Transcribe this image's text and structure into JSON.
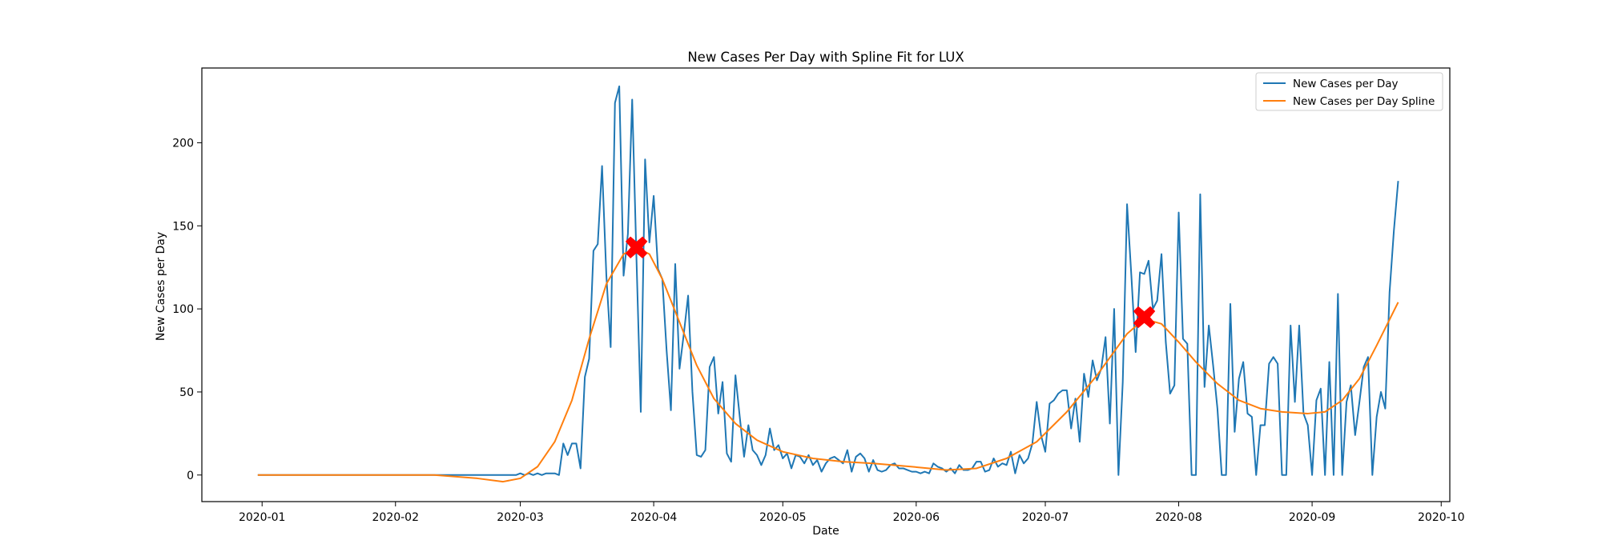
{
  "chart_data": {
    "type": "line",
    "title": "New Cases Per Day with Spline Fit for LUX",
    "xlabel": "Date",
    "ylabel": "New Cases per Day",
    "x_start_date": "2019-12-31",
    "xlim_dates": [
      "2019-12-18",
      "2020-10-03"
    ],
    "ylim": [
      -16,
      245
    ],
    "x_ticks": [
      {
        "date": "2020-01-01",
        "label": "2020-01"
      },
      {
        "date": "2020-02-01",
        "label": "2020-02"
      },
      {
        "date": "2020-03-01",
        "label": "2020-03"
      },
      {
        "date": "2020-04-01",
        "label": "2020-04"
      },
      {
        "date": "2020-05-01",
        "label": "2020-05"
      },
      {
        "date": "2020-06-01",
        "label": "2020-06"
      },
      {
        "date": "2020-07-01",
        "label": "2020-07"
      },
      {
        "date": "2020-08-01",
        "label": "2020-08"
      },
      {
        "date": "2020-09-01",
        "label": "2020-09"
      },
      {
        "date": "2020-10-01",
        "label": "2020-10"
      }
    ],
    "y_ticks": [
      0,
      50,
      100,
      150,
      200
    ],
    "grid": false,
    "legend": "top-right",
    "series": [
      {
        "name": "New Cases per Day",
        "color": "#1f77b4",
        "points": [
          [
            "2019-12-31",
            0
          ],
          [
            "2020-01-10",
            0
          ],
          [
            "2020-01-20",
            0
          ],
          [
            "2020-01-31",
            0
          ],
          [
            "2020-02-10",
            0
          ],
          [
            "2020-02-20",
            0
          ],
          [
            "2020-02-29",
            0
          ],
          [
            "2020-03-01",
            1
          ],
          [
            "2020-03-02",
            0
          ],
          [
            "2020-03-03",
            1
          ],
          [
            "2020-03-04",
            0
          ],
          [
            "2020-03-05",
            1
          ],
          [
            "2020-03-06",
            0
          ],
          [
            "2020-03-07",
            1
          ],
          [
            "2020-03-08",
            1
          ],
          [
            "2020-03-09",
            1
          ],
          [
            "2020-03-10",
            0
          ],
          [
            "2020-03-11",
            19
          ],
          [
            "2020-03-12",
            12
          ],
          [
            "2020-03-13",
            19
          ],
          [
            "2020-03-14",
            19
          ],
          [
            "2020-03-15",
            4
          ],
          [
            "2020-03-16",
            59
          ],
          [
            "2020-03-17",
            70
          ],
          [
            "2020-03-18",
            135
          ],
          [
            "2020-03-19",
            139
          ],
          [
            "2020-03-20",
            186
          ],
          [
            "2020-03-21",
            120
          ],
          [
            "2020-03-22",
            77
          ],
          [
            "2020-03-23",
            224
          ],
          [
            "2020-03-24",
            234
          ],
          [
            "2020-03-25",
            120
          ],
          [
            "2020-03-26",
            145
          ],
          [
            "2020-03-27",
            226
          ],
          [
            "2020-03-28",
            130
          ],
          [
            "2020-03-29",
            38
          ],
          [
            "2020-03-30",
            190
          ],
          [
            "2020-03-31",
            140
          ],
          [
            "2020-04-01",
            168
          ],
          [
            "2020-04-02",
            124
          ],
          [
            "2020-04-03",
            118
          ],
          [
            "2020-04-04",
            75
          ],
          [
            "2020-04-05",
            39
          ],
          [
            "2020-04-06",
            127
          ],
          [
            "2020-04-07",
            64
          ],
          [
            "2020-04-08",
            85
          ],
          [
            "2020-04-09",
            108
          ],
          [
            "2020-04-10",
            50
          ],
          [
            "2020-04-11",
            12
          ],
          [
            "2020-04-12",
            11
          ],
          [
            "2020-04-13",
            15
          ],
          [
            "2020-04-14",
            65
          ],
          [
            "2020-04-15",
            71
          ],
          [
            "2020-04-16",
            37
          ],
          [
            "2020-04-17",
            56
          ],
          [
            "2020-04-18",
            13
          ],
          [
            "2020-04-19",
            8
          ],
          [
            "2020-04-20",
            60
          ],
          [
            "2020-04-21",
            35
          ],
          [
            "2020-04-22",
            11
          ],
          [
            "2020-04-23",
            30
          ],
          [
            "2020-04-24",
            15
          ],
          [
            "2020-04-25",
            12
          ],
          [
            "2020-04-26",
            6
          ],
          [
            "2020-04-27",
            12
          ],
          [
            "2020-04-28",
            28
          ],
          [
            "2020-04-29",
            15
          ],
          [
            "2020-04-30",
            18
          ],
          [
            "2020-05-01",
            10
          ],
          [
            "2020-05-02",
            13
          ],
          [
            "2020-05-03",
            4
          ],
          [
            "2020-05-04",
            12
          ],
          [
            "2020-05-05",
            11
          ],
          [
            "2020-05-06",
            7
          ],
          [
            "2020-05-07",
            12
          ],
          [
            "2020-05-08",
            6
          ],
          [
            "2020-05-09",
            9
          ],
          [
            "2020-05-10",
            2
          ],
          [
            "2020-05-11",
            7
          ],
          [
            "2020-05-12",
            10
          ],
          [
            "2020-05-13",
            11
          ],
          [
            "2020-05-14",
            9
          ],
          [
            "2020-05-15",
            7
          ],
          [
            "2020-05-16",
            15
          ],
          [
            "2020-05-17",
            2
          ],
          [
            "2020-05-18",
            11
          ],
          [
            "2020-05-19",
            13
          ],
          [
            "2020-05-20",
            10
          ],
          [
            "2020-05-21",
            2
          ],
          [
            "2020-05-22",
            9
          ],
          [
            "2020-05-23",
            3
          ],
          [
            "2020-05-24",
            2
          ],
          [
            "2020-05-25",
            3
          ],
          [
            "2020-05-26",
            6
          ],
          [
            "2020-05-27",
            7
          ],
          [
            "2020-05-28",
            4
          ],
          [
            "2020-05-29",
            4
          ],
          [
            "2020-05-30",
            3
          ],
          [
            "2020-05-31",
            2
          ],
          [
            "2020-06-01",
            2
          ],
          [
            "2020-06-02",
            1
          ],
          [
            "2020-06-03",
            2
          ],
          [
            "2020-06-04",
            1
          ],
          [
            "2020-06-05",
            7
          ],
          [
            "2020-06-06",
            5
          ],
          [
            "2020-06-07",
            4
          ],
          [
            "2020-06-08",
            2
          ],
          [
            "2020-06-09",
            4
          ],
          [
            "2020-06-10",
            1
          ],
          [
            "2020-06-11",
            6
          ],
          [
            "2020-06-12",
            3
          ],
          [
            "2020-06-13",
            3
          ],
          [
            "2020-06-14",
            4
          ],
          [
            "2020-06-15",
            8
          ],
          [
            "2020-06-16",
            8
          ],
          [
            "2020-06-17",
            2
          ],
          [
            "2020-06-18",
            3
          ],
          [
            "2020-06-19",
            10
          ],
          [
            "2020-06-20",
            5
          ],
          [
            "2020-06-21",
            7
          ],
          [
            "2020-06-22",
            6
          ],
          [
            "2020-06-23",
            14
          ],
          [
            "2020-06-24",
            1
          ],
          [
            "2020-06-25",
            12
          ],
          [
            "2020-06-26",
            7
          ],
          [
            "2020-06-27",
            10
          ],
          [
            "2020-06-28",
            19
          ],
          [
            "2020-06-29",
            44
          ],
          [
            "2020-06-30",
            24
          ],
          [
            "2020-07-01",
            14
          ],
          [
            "2020-07-02",
            43
          ],
          [
            "2020-07-03",
            45
          ],
          [
            "2020-07-04",
            49
          ],
          [
            "2020-07-05",
            51
          ],
          [
            "2020-07-06",
            51
          ],
          [
            "2020-07-07",
            28
          ],
          [
            "2020-07-08",
            46
          ],
          [
            "2020-07-09",
            20
          ],
          [
            "2020-07-10",
            61
          ],
          [
            "2020-07-11",
            47
          ],
          [
            "2020-07-12",
            69
          ],
          [
            "2020-07-13",
            57
          ],
          [
            "2020-07-14",
            64
          ],
          [
            "2020-07-15",
            83
          ],
          [
            "2020-07-16",
            31
          ],
          [
            "2020-07-17",
            100
          ],
          [
            "2020-07-18",
            0
          ],
          [
            "2020-07-19",
            56
          ],
          [
            "2020-07-20",
            163
          ],
          [
            "2020-07-21",
            120
          ],
          [
            "2020-07-22",
            74
          ],
          [
            "2020-07-23",
            122
          ],
          [
            "2020-07-24",
            121
          ],
          [
            "2020-07-25",
            129
          ],
          [
            "2020-07-26",
            100
          ],
          [
            "2020-07-27",
            105
          ],
          [
            "2020-07-28",
            133
          ],
          [
            "2020-07-29",
            80
          ],
          [
            "2020-07-30",
            49
          ],
          [
            "2020-07-31",
            54
          ],
          [
            "2020-08-01",
            158
          ],
          [
            "2020-08-02",
            82
          ],
          [
            "2020-08-03",
            79
          ],
          [
            "2020-08-04",
            0
          ],
          [
            "2020-08-05",
            0
          ],
          [
            "2020-08-06",
            169
          ],
          [
            "2020-08-07",
            53
          ],
          [
            "2020-08-08",
            90
          ],
          [
            "2020-08-09",
            66
          ],
          [
            "2020-08-10",
            40
          ],
          [
            "2020-08-11",
            0
          ],
          [
            "2020-08-12",
            0
          ],
          [
            "2020-08-13",
            103
          ],
          [
            "2020-08-14",
            26
          ],
          [
            "2020-08-15",
            58
          ],
          [
            "2020-08-16",
            68
          ],
          [
            "2020-08-17",
            37
          ],
          [
            "2020-08-18",
            35
          ],
          [
            "2020-08-19",
            0
          ],
          [
            "2020-08-20",
            30
          ],
          [
            "2020-08-21",
            30
          ],
          [
            "2020-08-22",
            67
          ],
          [
            "2020-08-23",
            71
          ],
          [
            "2020-08-24",
            67
          ],
          [
            "2020-08-25",
            0
          ],
          [
            "2020-08-26",
            0
          ],
          [
            "2020-08-27",
            90
          ],
          [
            "2020-08-28",
            44
          ],
          [
            "2020-08-29",
            90
          ],
          [
            "2020-08-30",
            37
          ],
          [
            "2020-08-31",
            30
          ],
          [
            "2020-09-01",
            0
          ],
          [
            "2020-09-02",
            45
          ],
          [
            "2020-09-03",
            52
          ],
          [
            "2020-09-04",
            0
          ],
          [
            "2020-09-05",
            68
          ],
          [
            "2020-09-06",
            0
          ],
          [
            "2020-09-07",
            109
          ],
          [
            "2020-09-08",
            0
          ],
          [
            "2020-09-09",
            44
          ],
          [
            "2020-09-10",
            54
          ],
          [
            "2020-09-11",
            24
          ],
          [
            "2020-09-12",
            44
          ],
          [
            "2020-09-13",
            65
          ],
          [
            "2020-09-14",
            71
          ],
          [
            "2020-09-15",
            0
          ],
          [
            "2020-09-16",
            35
          ],
          [
            "2020-09-17",
            50
          ],
          [
            "2020-09-18",
            40
          ],
          [
            "2020-09-19",
            110
          ],
          [
            "2020-09-20",
            147
          ],
          [
            "2020-09-21",
            177
          ]
        ]
      },
      {
        "name": "New Cases per Day Spline",
        "color": "#ff7f0e",
        "points": [
          [
            "2019-12-31",
            0
          ],
          [
            "2020-01-15",
            0
          ],
          [
            "2020-02-01",
            0
          ],
          [
            "2020-02-10",
            0
          ],
          [
            "2020-02-20",
            -2
          ],
          [
            "2020-02-26",
            -4
          ],
          [
            "2020-03-01",
            -2
          ],
          [
            "2020-03-05",
            5
          ],
          [
            "2020-03-09",
            20
          ],
          [
            "2020-03-13",
            45
          ],
          [
            "2020-03-17",
            82
          ],
          [
            "2020-03-21",
            115
          ],
          [
            "2020-03-25",
            133
          ],
          [
            "2020-03-28",
            137
          ],
          [
            "2020-03-31",
            133
          ],
          [
            "2020-04-03",
            118
          ],
          [
            "2020-04-07",
            92
          ],
          [
            "2020-04-11",
            66
          ],
          [
            "2020-04-15",
            46
          ],
          [
            "2020-04-20",
            31
          ],
          [
            "2020-04-25",
            21
          ],
          [
            "2020-05-01",
            14
          ],
          [
            "2020-05-08",
            10
          ],
          [
            "2020-05-15",
            8
          ],
          [
            "2020-05-22",
            7
          ],
          [
            "2020-05-31",
            5
          ],
          [
            "2020-06-08",
            3
          ],
          [
            "2020-06-15",
            4
          ],
          [
            "2020-06-22",
            10
          ],
          [
            "2020-06-29",
            20
          ],
          [
            "2020-07-06",
            38
          ],
          [
            "2020-07-13",
            60
          ],
          [
            "2020-07-20",
            85
          ],
          [
            "2020-07-24",
            94
          ],
          [
            "2020-07-28",
            91
          ],
          [
            "2020-08-01",
            80
          ],
          [
            "2020-08-05",
            68
          ],
          [
            "2020-08-10",
            55
          ],
          [
            "2020-08-15",
            45
          ],
          [
            "2020-08-20",
            40
          ],
          [
            "2020-08-25",
            38
          ],
          [
            "2020-08-31",
            37
          ],
          [
            "2020-09-04",
            38
          ],
          [
            "2020-09-08",
            45
          ],
          [
            "2020-09-12",
            58
          ],
          [
            "2020-09-16",
            78
          ],
          [
            "2020-09-21",
            104
          ]
        ]
      }
    ],
    "markers": [
      {
        "date": "2020-03-28",
        "value": 137,
        "color": "#ff0000",
        "shape": "X"
      },
      {
        "date": "2020-07-24",
        "value": 95,
        "color": "#ff0000",
        "shape": "X"
      }
    ]
  }
}
